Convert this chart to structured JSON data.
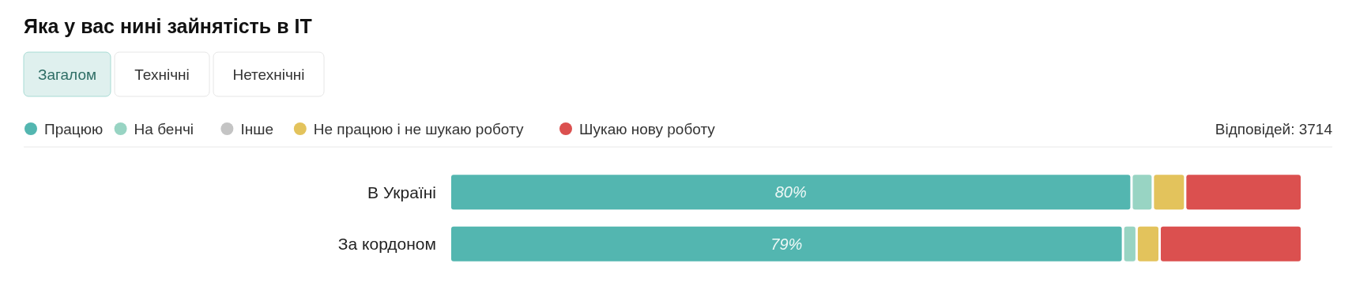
{
  "chart_data": {
    "type": "bar",
    "orientation": "horizontal",
    "stacked": true,
    "title": "Яка у вас нині зайнятість в IT",
    "categories": [
      "В Україні",
      "За кордоном"
    ],
    "series": [
      {
        "name": "Працюю",
        "color": "#53b6b0",
        "values": [
          80,
          79
        ],
        "value_labels": [
          "80%",
          "79%"
        ]
      },
      {
        "name": "На бенчі",
        "color": "#98d4c3",
        "values": [
          2.5,
          1.6
        ]
      },
      {
        "name": "Інше",
        "color": "#c4c4c4",
        "values": [
          0,
          0
        ]
      },
      {
        "name": "Не працюю і не шукаю роботу",
        "color": "#e3c35c",
        "values": [
          3.8,
          2.7
        ]
      },
      {
        "name": "Шукаю нову роботу",
        "color": "#db504f",
        "values": [
          13.7,
          16.7
        ]
      }
    ],
    "xlim": [
      0,
      100
    ],
    "tick_labels": "y",
    "legend": "top left",
    "annotations": [
      "Загалом",
      "Технічні",
      "Нетехнічні",
      "Відповідей: 3714"
    ]
  }
}
